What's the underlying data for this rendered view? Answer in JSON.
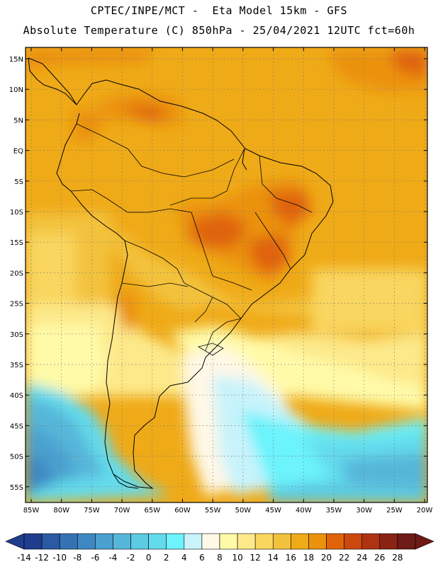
{
  "header": {
    "line1": "CPTEC/INPE/MCT -  Eta Model 15km - GFS",
    "line2": "Absolute Temperature (C) 850hPa - 25/04/2021 12UTC fct=60h"
  },
  "map": {
    "lat_labels": [
      "15N",
      "10N",
      "5N",
      "EQ",
      "5S",
      "10S",
      "15S",
      "20S",
      "25S",
      "30S",
      "35S",
      "40S",
      "45S",
      "50S",
      "55S"
    ],
    "lon_labels": [
      "85W",
      "80W",
      "75W",
      "70W",
      "65W",
      "60W",
      "55W",
      "50W",
      "45W",
      "40W",
      "35W",
      "30W",
      "25W",
      "20W"
    ]
  },
  "colorbar": {
    "labels": [
      "-14",
      "-12",
      "-10",
      "-8",
      "-6",
      "-4",
      "-2",
      "0",
      "2",
      "4",
      "6",
      "8",
      "10",
      "12",
      "14",
      "16",
      "18",
      "20",
      "22",
      "24",
      "26",
      "28"
    ],
    "colors": [
      "#1f3d8f",
      "#2a5aa3",
      "#3472b3",
      "#3d88c2",
      "#4aa0cf",
      "#56b6d9",
      "#5ccbe3",
      "#63dbec",
      "#6cf3fb",
      "#c8f3fb",
      "#fff8e6",
      "#fffaa8",
      "#fde98a",
      "#f9d65e",
      "#f3c23c",
      "#efaa18",
      "#eb920c",
      "#e0630a",
      "#cc480e",
      "#ae3312",
      "#8a2314",
      "#6e1a16"
    ],
    "low_color": "#1f3d8f",
    "high_color": "#6e1a16"
  }
}
